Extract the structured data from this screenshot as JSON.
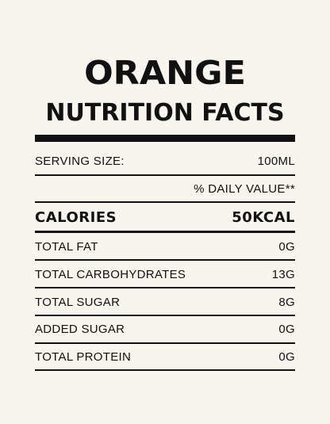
{
  "header": {
    "title": "ORANGE",
    "subtitle": "NUTRITION FACTS"
  },
  "serving": {
    "label": "SERVING SIZE:",
    "value": "100ML"
  },
  "daily_value_note": "% DAILY VALUE**",
  "calories": {
    "label": "CALORIES",
    "value": "50KCAL"
  },
  "nutrients": [
    {
      "label": "TOTAL FAT",
      "value": "0G"
    },
    {
      "label": "TOTAL CARBOHYDRATES",
      "value": "13G"
    },
    {
      "label": "TOTAL SUGAR",
      "value": "8G"
    },
    {
      "label": "ADDED SUGAR",
      "value": "0G"
    },
    {
      "label": "TOTAL PROTEIN",
      "value": "0G"
    }
  ],
  "colors": {
    "background": "#f8f4ee",
    "ink": "#111111"
  }
}
